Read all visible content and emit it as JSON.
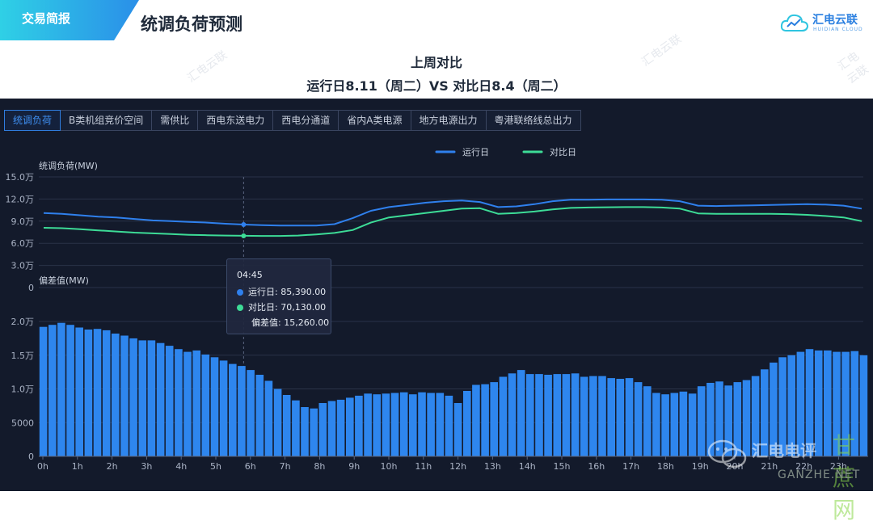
{
  "header": {
    "badge": "交易简报",
    "page_title": "统调负荷预测",
    "logo_text": "汇电云联",
    "logo_sub": "HUIDIAN CLOUD"
  },
  "subtitle": {
    "line1": "上周对比",
    "line2": "运行日8.11（周二）VS 对比日8.4（周二）"
  },
  "tabs": [
    {
      "label": "统调负荷",
      "active": true
    },
    {
      "label": "B类机组竞价空间",
      "active": false
    },
    {
      "label": "需供比",
      "active": false
    },
    {
      "label": "西电东送电力",
      "active": false
    },
    {
      "label": "西电分通道",
      "active": false
    },
    {
      "label": "省内A类电源",
      "active": false
    },
    {
      "label": "地方电源出力",
      "active": false
    },
    {
      "label": "粤港联络线总出力",
      "active": false
    }
  ],
  "tooltip": {
    "time": "04:45",
    "run_label": "运行日: 85,390.00",
    "comp_label": "对比日: 70,130.00",
    "diff_label": "偏差值: 15,260.00"
  },
  "watermark": {
    "corner": "汇电云联",
    "bottom_name": "汇电电评",
    "bottom_site_cn": "甘蔗网",
    "bottom_site_en": "GANZHE.NET"
  },
  "colors": {
    "run": "#2f80ed",
    "comp": "#3ddc97",
    "bar": "#2e86ee",
    "panel": "#131a2b"
  },
  "chart_data": [
    {
      "type": "line",
      "ylabel": "统调负荷(MW)",
      "ylim": [
        0,
        150000
      ],
      "yticks": [
        "0",
        "3.0万",
        "6.0万",
        "9.0万",
        "12.0万",
        "15.0万"
      ],
      "x_tick_labels": [
        "0h",
        "1h",
        "2h",
        "3h",
        "4h",
        "5h",
        "6h",
        "7h",
        "8h",
        "9h",
        "10h",
        "11h",
        "12h",
        "13h",
        "14h",
        "15h",
        "16h",
        "17h",
        "18h",
        "19h",
        "20h",
        "21h",
        "22h",
        "23h"
      ],
      "legend": [
        "运行日",
        "对比日"
      ],
      "series": [
        {
          "name": "运行日",
          "values": [
            101000,
            100000,
            98000,
            96000,
            95000,
            93000,
            91000,
            90000,
            89000,
            88000,
            86500,
            85390,
            84500,
            84000,
            84000,
            84000,
            86000,
            94000,
            104000,
            109000,
            112000,
            115000,
            117000,
            118000,
            116000,
            109000,
            110000,
            113000,
            117000,
            119000,
            119000,
            119500,
            119500,
            119500,
            119000,
            117000,
            111000,
            110500,
            111000,
            111500,
            112000,
            112500,
            113000,
            112500,
            111000,
            107000
          ]
        },
        {
          "name": "对比日",
          "values": [
            81000,
            80500,
            79000,
            77500,
            76000,
            74500,
            73500,
            72500,
            71500,
            71000,
            70500,
            70130,
            70000,
            70000,
            70500,
            72000,
            74000,
            78000,
            88000,
            95000,
            98000,
            101000,
            104000,
            107000,
            107500,
            100000,
            101000,
            103000,
            106000,
            108000,
            108500,
            108800,
            109000,
            109000,
            108500,
            107000,
            100500,
            100000,
            100000,
            100000,
            100000,
            99500,
            98500,
            97000,
            95000,
            90000
          ]
        }
      ]
    },
    {
      "type": "bar",
      "ylabel": "偏差值(MW)",
      "ylim": [
        0,
        24000
      ],
      "yticks": [
        "0",
        "5000",
        "1.0万",
        "1.5万",
        "2.0万"
      ],
      "x_tick_labels": [
        "0h",
        "1h",
        "2h",
        "3h",
        "4h",
        "5h",
        "6h",
        "7h",
        "8h",
        "9h",
        "10h",
        "11h",
        "12h",
        "13h",
        "14h",
        "15h",
        "16h",
        "17h",
        "18h",
        "19h",
        "20h",
        "21h",
        "22h",
        "23h"
      ],
      "series": [
        {
          "name": "偏差值",
          "values": [
            19200,
            19500,
            19800,
            19500,
            19100,
            18800,
            18900,
            18700,
            18200,
            17900,
            17500,
            17200,
            17200,
            16800,
            16400,
            15900,
            15500,
            15700,
            15100,
            14700,
            14200,
            13700,
            13400,
            12800,
            12100,
            11200,
            10000,
            9100,
            8300,
            7300,
            7100,
            7900,
            8200,
            8400,
            8700,
            9000,
            9300,
            9200,
            9300,
            9400,
            9500,
            9200,
            9500,
            9400,
            9400,
            9000,
            7900,
            9700,
            10600,
            10700,
            11000,
            11800,
            12300,
            12800,
            12200,
            12200,
            12100,
            12200,
            12200,
            12300,
            11800,
            11900,
            11900,
            11600,
            11500,
            11600,
            11000,
            10400,
            9400,
            9200,
            9400,
            9600,
            9300,
            10400,
            10900,
            11100,
            10500,
            11000,
            11300,
            11900,
            12900,
            13900,
            14700,
            15000,
            15500,
            15900,
            15700,
            15700,
            15500,
            15500,
            15600,
            15000
          ]
        }
      ]
    }
  ]
}
